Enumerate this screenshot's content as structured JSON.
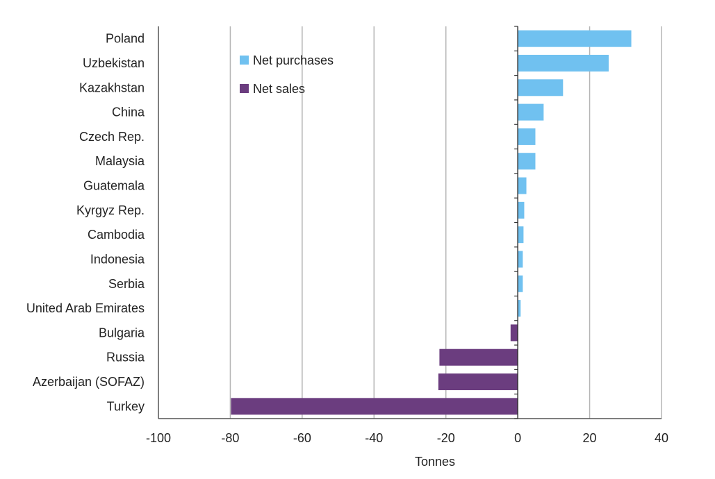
{
  "chart_data": {
    "type": "bar",
    "orientation": "horizontal",
    "categories": [
      "Poland",
      "Uzbekistan",
      "Kazakhstan",
      "China",
      "Czech Rep.",
      "Malaysia",
      "Guatemala",
      "Kyrgyz Rep.",
      "Cambodia",
      "Indonesia",
      "Serbia",
      "United Arab Emirates",
      "Bulgaria",
      "Russia",
      "Azerbaijan (SOFAZ)",
      "Turkey"
    ],
    "values": [
      31.6,
      25.3,
      12.6,
      7.2,
      4.9,
      4.9,
      2.4,
      1.8,
      1.6,
      1.4,
      1.4,
      0.8,
      -2.0,
      -21.8,
      -22.1,
      -79.8
    ],
    "series": [
      {
        "name": "Net purchases",
        "color": "#70C1F0"
      },
      {
        "name": "Net sales",
        "color": "#6B3D7F"
      }
    ],
    "title": "",
    "xlabel": "Tonnes",
    "ylabel": "",
    "xlim": [
      -100,
      40
    ],
    "xticks": [
      "-100",
      "-80",
      "-60",
      "-40",
      "-20",
      "0",
      "20",
      "40"
    ],
    "grid": "vertical",
    "legend": "top-center"
  }
}
